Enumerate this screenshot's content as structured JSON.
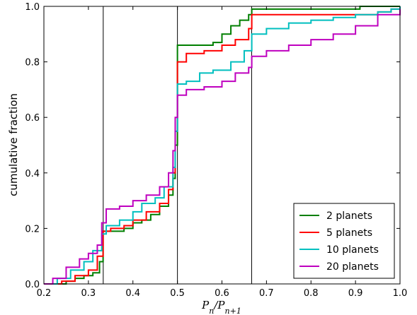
{
  "chart_data": {
    "type": "line",
    "drawstyle": "steps-post",
    "ylabel": "cumulative fraction",
    "xlabel_parts": [
      {
        "text": "P"
      },
      {
        "text": "n",
        "sub": true
      },
      {
        "text": "/"
      },
      {
        "text": "P"
      },
      {
        "text": "n+1",
        "sub": true
      }
    ],
    "xlim": [
      0.2,
      1.0
    ],
    "ylim": [
      0.0,
      1.0
    ],
    "xticks": [
      0.2,
      0.3,
      0.4,
      0.5,
      0.6,
      0.7,
      0.8,
      0.9,
      {
        "value": 1.0,
        "label": "1.0"
      }
    ],
    "yticks": [
      {
        "value": 0.0,
        "label": "0.0"
      },
      0.2,
      0.4,
      0.6,
      0.8,
      {
        "value": 1.0,
        "label": "1.0"
      }
    ],
    "vlines": [
      0.3333,
      0.5,
      0.6667
    ],
    "legend": "lower right",
    "series": [
      {
        "name": "2 planets",
        "color": "#007f00",
        "x": [
          0.22,
          0.25,
          0.27,
          0.29,
          0.31,
          0.325,
          0.333,
          0.37,
          0.38,
          0.4,
          0.42,
          0.44,
          0.46,
          0.48,
          0.49,
          0.495,
          0.5,
          0.58,
          0.6,
          0.62,
          0.64,
          0.66,
          0.667,
          0.9,
          0.91,
          1.0
        ],
        "values": [
          0,
          0.01,
          0.02,
          0.03,
          0.04,
          0.08,
          0.19,
          0.19,
          0.2,
          0.22,
          0.23,
          0.25,
          0.28,
          0.32,
          0.38,
          0.5,
          0.86,
          0.87,
          0.9,
          0.93,
          0.95,
          0.97,
          0.99,
          0.99,
          1.0,
          1.0
        ]
      },
      {
        "name": "5 planets",
        "color": "#ff0000",
        "x": [
          0.21,
          0.24,
          0.27,
          0.3,
          0.32,
          0.333,
          0.35,
          0.38,
          0.4,
          0.43,
          0.46,
          0.48,
          0.49,
          0.495,
          0.5,
          0.52,
          0.56,
          0.6,
          0.63,
          0.66,
          0.667,
          0.88,
          0.95,
          0.98,
          1.0
        ],
        "values": [
          0,
          0.01,
          0.03,
          0.05,
          0.1,
          0.19,
          0.2,
          0.21,
          0.23,
          0.26,
          0.29,
          0.34,
          0.4,
          0.55,
          0.8,
          0.83,
          0.84,
          0.86,
          0.88,
          0.92,
          0.97,
          0.97,
          0.98,
          0.99,
          1.0
        ]
      },
      {
        "name": "10 planets",
        "color": "#00bfbf",
        "x": [
          0.21,
          0.23,
          0.26,
          0.29,
          0.31,
          0.33,
          0.34,
          0.37,
          0.4,
          0.42,
          0.45,
          0.47,
          0.49,
          0.495,
          0.5,
          0.52,
          0.55,
          0.58,
          0.62,
          0.65,
          0.667,
          0.7,
          0.75,
          0.8,
          0.85,
          0.9,
          0.95,
          0.98,
          1.0
        ],
        "values": [
          0,
          0.02,
          0.05,
          0.08,
          0.12,
          0.18,
          0.21,
          0.23,
          0.26,
          0.29,
          0.31,
          0.35,
          0.42,
          0.55,
          0.72,
          0.73,
          0.76,
          0.77,
          0.8,
          0.84,
          0.9,
          0.92,
          0.94,
          0.95,
          0.96,
          0.97,
          0.98,
          0.99,
          1.0
        ]
      },
      {
        "name": "20 planets",
        "color": "#bf00bf",
        "x": [
          0.2,
          0.22,
          0.25,
          0.28,
          0.3,
          0.32,
          0.33,
          0.34,
          0.37,
          0.4,
          0.43,
          0.46,
          0.48,
          0.49,
          0.495,
          0.5,
          0.52,
          0.56,
          0.6,
          0.63,
          0.66,
          0.667,
          0.7,
          0.75,
          0.8,
          0.85,
          0.9,
          0.95,
          1.0
        ],
        "values": [
          0,
          0.02,
          0.06,
          0.09,
          0.11,
          0.14,
          0.22,
          0.27,
          0.28,
          0.3,
          0.32,
          0.35,
          0.4,
          0.48,
          0.6,
          0.68,
          0.7,
          0.71,
          0.73,
          0.76,
          0.78,
          0.82,
          0.84,
          0.86,
          0.88,
          0.9,
          0.93,
          0.97,
          0.99
        ]
      }
    ]
  }
}
